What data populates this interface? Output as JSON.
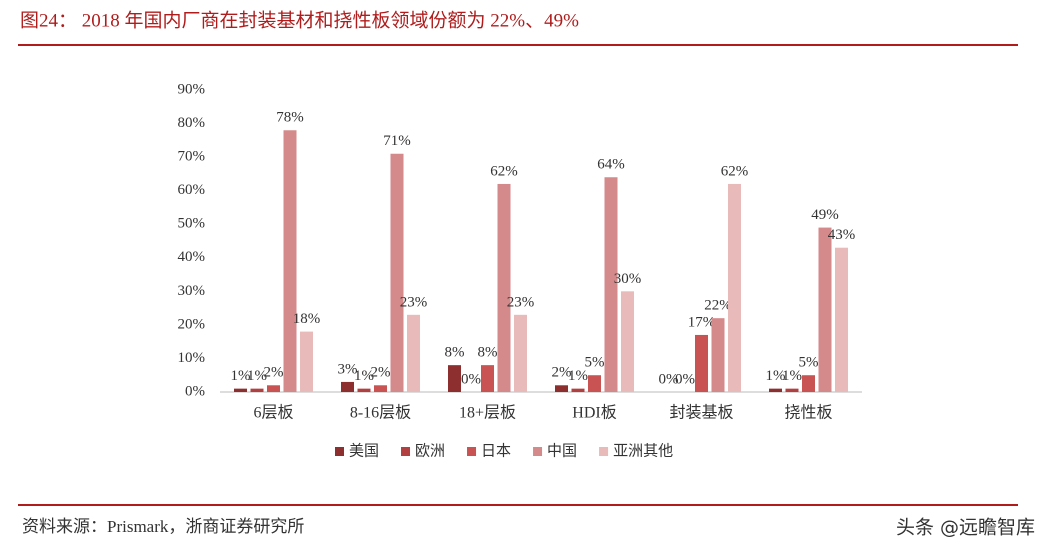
{
  "header": {
    "title": "图24： 2018 年国内厂商在封装基材和挠性板领域份额为 22%、49%"
  },
  "chart_data": {
    "type": "bar",
    "categories": [
      "6层板",
      "8-16层板",
      "18+层板",
      "HDI板",
      "封装基板",
      "挠性板"
    ],
    "series": [
      {
        "name": "美国",
        "color": "#8e2f2f",
        "values": [
          1,
          3,
          8,
          2,
          0,
          1
        ],
        "value_labels": [
          "1%",
          "3%",
          "8%",
          "2%",
          "0%",
          "1%"
        ]
      },
      {
        "name": "欧洲",
        "color": "#b24040",
        "values": [
          1,
          1,
          0,
          1,
          0,
          1
        ],
        "value_labels": [
          "1%",
          "1%",
          "0%",
          "1%",
          "0%",
          "1%"
        ]
      },
      {
        "name": "日本",
        "color": "#c95252",
        "values": [
          2,
          2,
          8,
          5,
          17,
          5
        ],
        "value_labels": [
          "2%",
          "2%",
          "8%",
          "5%",
          "17%",
          "5%"
        ]
      },
      {
        "name": "中国",
        "color": "#d48a8a",
        "values": [
          78,
          71,
          62,
          64,
          22,
          49
        ],
        "value_labels": [
          "78%",
          "71%",
          "62%",
          "64%",
          "22%",
          "49%"
        ]
      },
      {
        "name": "亚洲其他",
        "color": "#e8baba",
        "values": [
          18,
          23,
          23,
          30,
          62,
          43
        ],
        "value_labels": [
          "18%",
          "23%",
          "23%",
          "30%",
          "62%",
          "43%"
        ]
      }
    ],
    "ylim": [
      0,
      90
    ],
    "yticks": [
      {
        "value": 0,
        "label": "0%"
      },
      {
        "value": 10,
        "label": "10%"
      },
      {
        "value": 20,
        "label": "20%"
      },
      {
        "value": 30,
        "label": "30%"
      },
      {
        "value": 40,
        "label": "40%"
      },
      {
        "value": 50,
        "label": "50%"
      },
      {
        "value": 60,
        "label": "60%"
      },
      {
        "value": 70,
        "label": "70%"
      },
      {
        "value": 80,
        "label": "80%"
      },
      {
        "value": 90,
        "label": "90%"
      }
    ],
    "grid": false,
    "legend": "bottom"
  },
  "footer": {
    "source": "资料来源：Prismark，浙商证券研究所",
    "watermark": "头条 @远瞻智库"
  }
}
